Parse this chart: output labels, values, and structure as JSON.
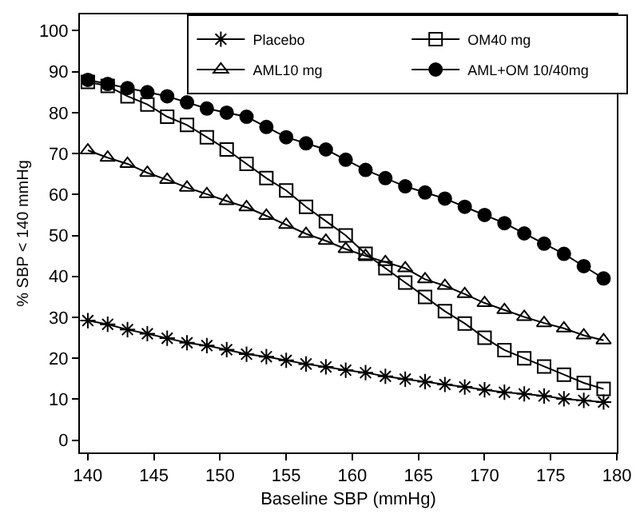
{
  "chart_data": {
    "type": "line",
    "xlabel": "Baseline SBP (mmHg)",
    "ylabel": "% SBP < 140 mmHg",
    "x": [
      140,
      141.5,
      143,
      144.5,
      146,
      147.5,
      149,
      150.5,
      152,
      153.5,
      155,
      156.5,
      158,
      159.5,
      161,
      162.5,
      164,
      165.5,
      167,
      168.5,
      170,
      171.5,
      173,
      174.5,
      176,
      177.5,
      179
    ],
    "series": [
      {
        "name": "Placebo",
        "color": "#000000",
        "marker": "cross",
        "values": [
          29.2,
          28.3,
          27,
          26,
          24.9,
          23.8,
          23.1,
          22.1,
          21,
          20.4,
          19.5,
          18.6,
          17.9,
          17.1,
          16.5,
          15.6,
          14.9,
          14.3,
          13.6,
          13,
          12.3,
          11.7,
          11.3,
          10.8,
          10.1,
          9.7,
          9.3
        ]
      },
      {
        "name": "OM40 mg",
        "color": "#000000",
        "marker": "square",
        "values": [
          87.5,
          86.5,
          84,
          82,
          79,
          77,
          74,
          71,
          67.5,
          64,
          61,
          57,
          53.5,
          50,
          45.5,
          42,
          38.5,
          35,
          31.5,
          28.5,
          25,
          22,
          20,
          18,
          16,
          14,
          12.5
        ]
      },
      {
        "name": "AML10 mg",
        "color": "#000000",
        "marker": "triangle",
        "values": [
          70.8,
          69,
          67.5,
          65.3,
          63.6,
          61.7,
          60.1,
          58.4,
          56.9,
          54.8,
          52.6,
          50.4,
          48.7,
          46.7,
          45,
          43.5,
          42,
          39.3,
          37.7,
          35.7,
          33.5,
          31.8,
          30.1,
          28.6,
          27.3,
          25.6,
          24.4
        ]
      },
      {
        "name": "AML+OM 10/40mg",
        "color": "#000000",
        "marker": "circle",
        "values": [
          88,
          87,
          86,
          85,
          84,
          82.5,
          81,
          80,
          79,
          76.5,
          74,
          72.5,
          71,
          68.5,
          66,
          64,
          62,
          60.5,
          59,
          57,
          55,
          53,
          50.5,
          48,
          45.5,
          42.5,
          39.5
        ]
      }
    ],
    "xlim": [
      139.4,
      180
    ],
    "xticks": [
      140,
      145,
      150,
      155,
      160,
      165,
      170,
      175,
      180
    ],
    "ylim": [
      -3,
      104
    ],
    "yticks": [
      0,
      10,
      20,
      30,
      40,
      50,
      60,
      70,
      80,
      90,
      100
    ],
    "legend": "top",
    "line_style": "solid"
  }
}
